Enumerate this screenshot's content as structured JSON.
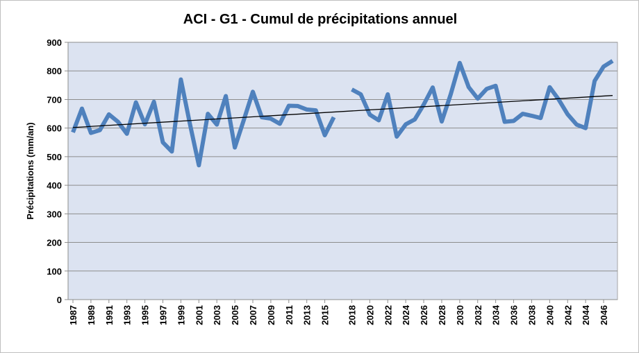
{
  "chart_data": {
    "type": "line",
    "title": "ACI - G1 - Cumul de précipitations annuel",
    "ylabel": "Précipitations (mm/an)",
    "xlabel": "",
    "ylim": [
      0,
      900
    ],
    "yticks": [
      0,
      100,
      200,
      300,
      400,
      500,
      600,
      700,
      800,
      900
    ],
    "xticks": [
      1987,
      1989,
      1991,
      1993,
      1995,
      1997,
      1999,
      2001,
      2003,
      2005,
      2007,
      2009,
      2011,
      2013,
      2015,
      2018,
      2020,
      2022,
      2024,
      2026,
      2028,
      2030,
      2032,
      2034,
      2036,
      2038,
      2040,
      2042,
      2044,
      2046
    ],
    "xticks_label": [
      "1987",
      "1989",
      "1991",
      "1993",
      "1995",
      "1997",
      "1999",
      "2001",
      "2003",
      "2005",
      "2007",
      "2009",
      "2011",
      "2013",
      "2015",
      "2018",
      "2020",
      "2022",
      "2024",
      "2026",
      "2028",
      "2030",
      "2032",
      "2034",
      "2036",
      "2038",
      "2040",
      "2042",
      "2044",
      "2046"
    ],
    "grid": true,
    "legend": "none",
    "series": [
      {
        "color": "#4f81bd",
        "points": [
          [
            1987,
            585
          ],
          [
            1988,
            668
          ],
          [
            1989,
            583
          ],
          [
            1990,
            593
          ],
          [
            1991,
            648
          ],
          [
            1992,
            622
          ],
          [
            1993,
            580
          ],
          [
            1994,
            690
          ],
          [
            1995,
            613
          ],
          [
            1996,
            692
          ],
          [
            1997,
            550
          ],
          [
            1998,
            518
          ],
          [
            1999,
            770
          ],
          [
            2000,
            615
          ],
          [
            2001,
            470
          ],
          [
            2002,
            650
          ],
          [
            2003,
            612
          ],
          [
            2004,
            712
          ],
          [
            2005,
            532
          ],
          [
            2006,
            628
          ],
          [
            2007,
            727
          ],
          [
            2008,
            638
          ],
          [
            2009,
            633
          ],
          [
            2010,
            615
          ],
          [
            2011,
            678
          ],
          [
            2012,
            677
          ],
          [
            2013,
            665
          ],
          [
            2014,
            662
          ],
          [
            2015,
            575
          ],
          [
            2016,
            638
          ],
          [
            2017,
            null
          ],
          [
            2018,
            735
          ],
          [
            2019,
            718
          ],
          [
            2020,
            647
          ],
          [
            2021,
            627
          ],
          [
            2022,
            718
          ],
          [
            2023,
            570
          ],
          [
            2024,
            613
          ],
          [
            2025,
            630
          ],
          [
            2026,
            682
          ],
          [
            2027,
            742
          ],
          [
            2028,
            623
          ],
          [
            2029,
            718
          ],
          [
            2030,
            828
          ],
          [
            2031,
            743
          ],
          [
            2032,
            703
          ],
          [
            2033,
            737
          ],
          [
            2034,
            748
          ],
          [
            2035,
            622
          ],
          [
            2036,
            625
          ],
          [
            2037,
            650
          ],
          [
            2038,
            643
          ],
          [
            2039,
            635
          ],
          [
            2040,
            743
          ],
          [
            2041,
            700
          ],
          [
            2042,
            648
          ],
          [
            2043,
            612
          ],
          [
            2044,
            600
          ],
          [
            2045,
            765
          ],
          [
            2046,
            815
          ],
          [
            2047,
            835
          ]
        ]
      }
    ],
    "trendline": {
      "color": "#000000",
      "start": [
        1987,
        602
      ],
      "end": [
        2047,
        714
      ]
    }
  }
}
